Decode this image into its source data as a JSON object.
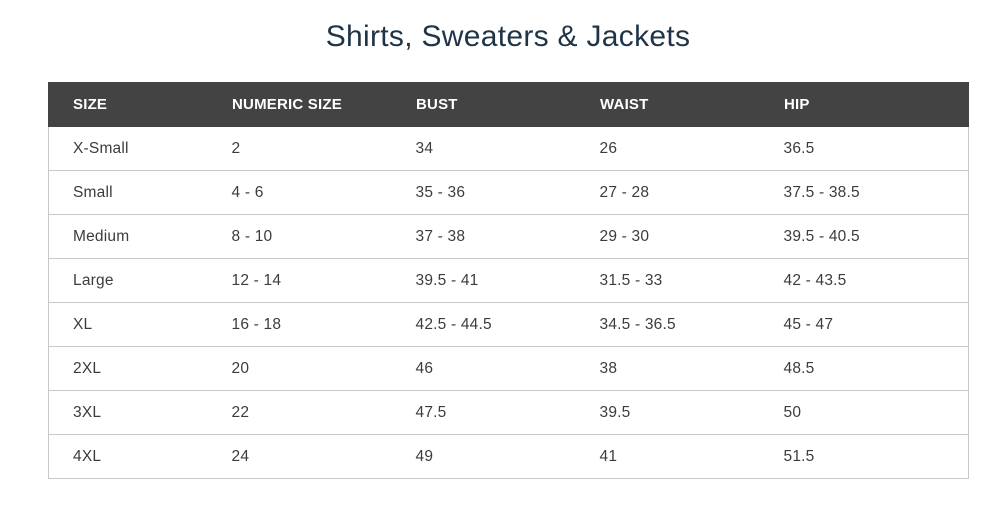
{
  "page": {
    "title": "Shirts, Sweaters & Jackets"
  },
  "table": {
    "headers": [
      "SIZE",
      "NUMERIC SIZE",
      "BUST",
      "WAIST",
      "HIP"
    ],
    "rows": [
      [
        "X-Small",
        "2",
        "34",
        "26",
        "36.5"
      ],
      [
        "Small",
        "4 - 6",
        "35 - 36",
        "27 - 28",
        "37.5 - 38.5"
      ],
      [
        "Medium",
        "8 - 10",
        "37 - 38",
        "29 - 30",
        "39.5 - 40.5"
      ],
      [
        "Large",
        "12 - 14",
        "39.5 - 41",
        "31.5 - 33",
        "42 - 43.5"
      ],
      [
        "XL",
        "16 - 18",
        "42.5 - 44.5",
        "34.5 - 36.5",
        "45 - 47"
      ],
      [
        "2XL",
        "20",
        "46",
        "38",
        "48.5"
      ],
      [
        "3XL",
        "22",
        "47.5",
        "39.5",
        "50"
      ],
      [
        "4XL",
        "24",
        "49",
        "41",
        "51.5"
      ]
    ]
  },
  "colors": {
    "title": "#1f3447",
    "header_background": "#434343",
    "header_text": "#ffffff",
    "row_border": "#c8c8c8",
    "cell_text": "#3c3c3c"
  }
}
